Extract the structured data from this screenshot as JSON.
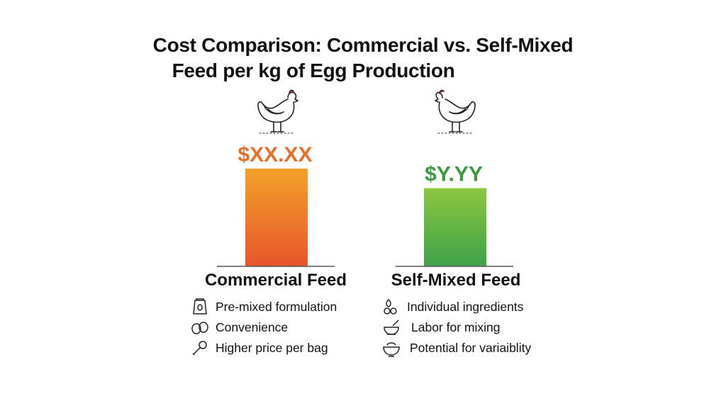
{
  "chart_data": {
    "type": "bar",
    "title": "Cost Comparison: Commercial vs. Self-Mixed Feed per kg of Egg Production",
    "title_lines": [
      "Cost Comparison: Commercial vs. Self-Mixed",
      "Feed per kg of Egg Production"
    ],
    "categories": [
      "Commercial Feed",
      "Self-Mixed Feed"
    ],
    "relative_values": [
      1.0,
      0.8
    ],
    "data_labels": [
      "$XX.XX",
      "$Y.YY"
    ],
    "xlabel": "",
    "ylabel": "",
    "grid": false,
    "colors": {
      "commercial_top": "#f2a22a",
      "commercial_bottom": "#e8552b",
      "commercial_label": "#e8702a",
      "self_top": "#8cc63f",
      "self_bottom": "#3ea24a",
      "self_label": "#3b9a3f"
    }
  },
  "features": {
    "commercial": [
      {
        "icon": "feed-bag-icon",
        "text": "Pre-mixed formulation"
      },
      {
        "icon": "eggs-icon",
        "text": "Convenience"
      },
      {
        "icon": "scoop-icon",
        "text": "Higher price per bag"
      }
    ],
    "self_mixed": [
      {
        "icon": "seeds-icon",
        "text": "Individual ingredients"
      },
      {
        "icon": "mortar-pestle-icon",
        "text": "Labor for mixing"
      },
      {
        "icon": "mixing-bowl-icon",
        "text": "Potential for variaiblity"
      }
    ]
  }
}
